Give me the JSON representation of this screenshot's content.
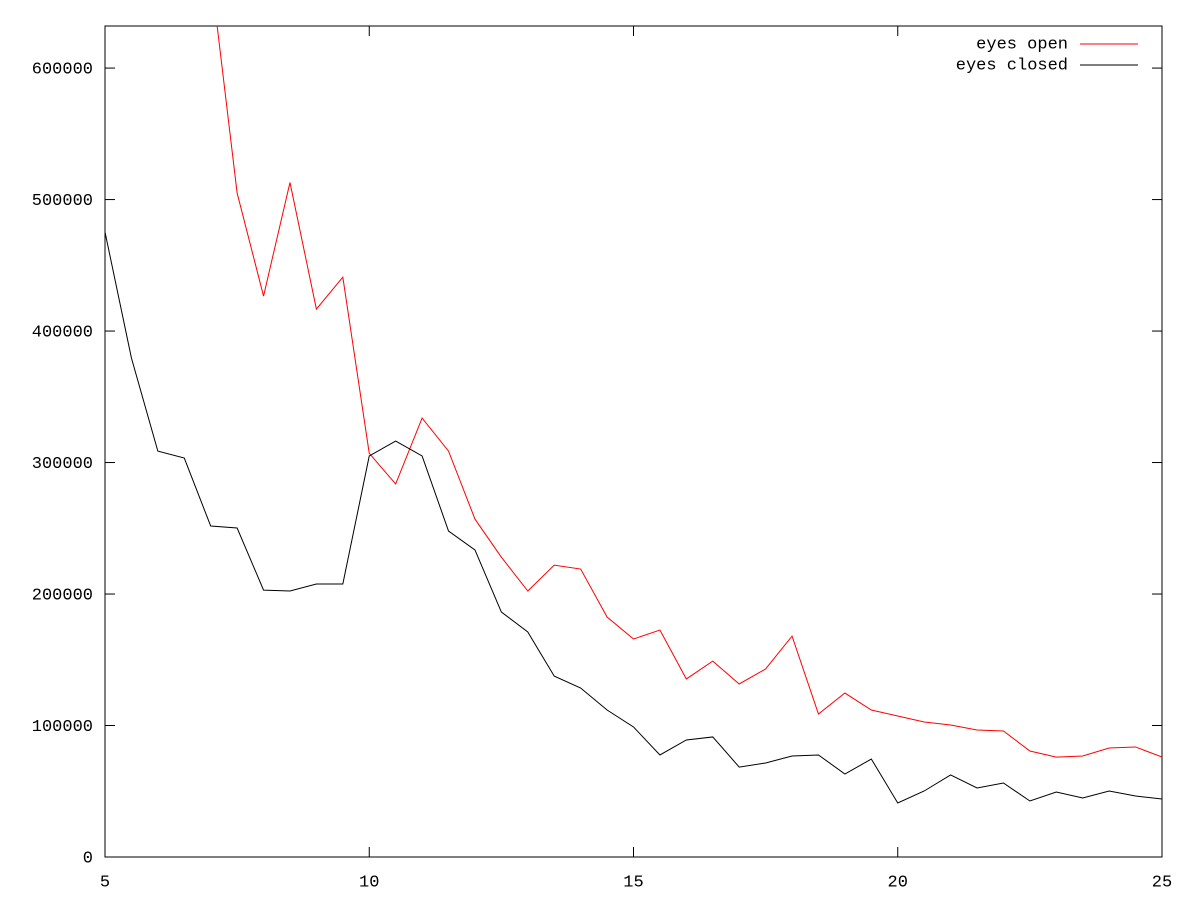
{
  "chart_data": {
    "type": "line",
    "x": [
      5,
      5.5,
      6,
      6.5,
      7,
      7.5,
      8,
      8.5,
      9,
      9.5,
      10,
      10.5,
      11,
      11.5,
      12,
      12.5,
      13,
      13.5,
      14,
      14.5,
      15,
      15.5,
      16,
      16.5,
      17,
      17.5,
      18,
      18.5,
      19,
      19.5,
      20,
      20.5,
      21,
      21.5,
      22,
      22.5,
      23,
      23.5,
      24,
      24.5,
      25
    ],
    "series": [
      {
        "name": "eyes open",
        "color": "#ff0000",
        "values": [
          null,
          null,
          null,
          null,
          673000,
          505000,
          426600,
          513000,
          416700,
          441000,
          307000,
          283700,
          333800,
          308700,
          257000,
          228000,
          202300,
          222000,
          219000,
          182500,
          165800,
          172600,
          135400,
          149000,
          131600,
          143000,
          168000,
          108700,
          124700,
          111800,
          107200,
          102700,
          100400,
          96600,
          95800,
          80600,
          76000,
          76800,
          82900,
          83700,
          76000
        ]
      },
      {
        "name": "eyes closed",
        "color": "#000000",
        "values": [
          475300,
          379500,
          308700,
          303400,
          251700,
          250200,
          203000,
          202300,
          207600,
          207600,
          305000,
          316300,
          305000,
          247900,
          233500,
          186300,
          171100,
          137600,
          128500,
          111800,
          98900,
          77600,
          89000,
          91300,
          68400,
          71500,
          76800,
          77600,
          63100,
          74500,
          41100,
          50200,
          62400,
          52500,
          56300,
          42600,
          49400,
          44900,
          50200,
          46400,
          44100
        ]
      }
    ],
    "xlim": [
      5,
      25
    ],
    "xticks": [
      5,
      10,
      15,
      20,
      25
    ],
    "ylim": [
      0,
      632000
    ],
    "yticks": [
      0,
      100000,
      200000,
      300000,
      400000,
      500000,
      600000
    ],
    "legend": "top-right"
  }
}
